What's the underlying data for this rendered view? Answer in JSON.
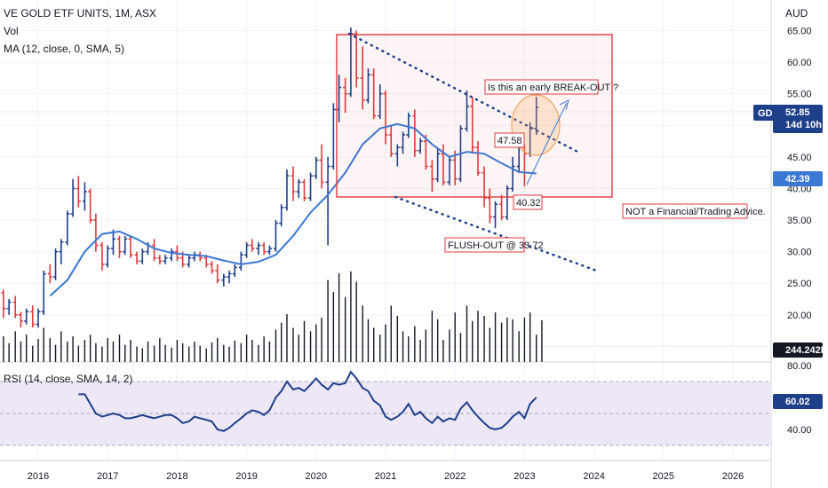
{
  "header": {
    "symbol_line": "VE GOLD ETF UNITS, 1M, ASX",
    "volume_label": "Vol",
    "ma_label": "MA (12, close, 0, SMA, 5)",
    "rsi_label": "RSI (14, close, SMA, 14, 2)",
    "currency": "AUD"
  },
  "chart_data": {
    "type": "candlestick",
    "timeframe": "1M",
    "x_tick_labels": [
      "2016",
      "2017",
      "2018",
      "2019",
      "2020",
      "2021",
      "2022",
      "2023",
      "2024",
      "2025",
      "2026"
    ],
    "price_axis": {
      "ylim": [
        14.5,
        69
      ],
      "ticks": [
        "15.00",
        "20.00",
        "25.00",
        "30.00",
        "35.00",
        "40.00",
        "45.00",
        "50.00",
        "55.00",
        "60.00",
        "65.00"
      ]
    },
    "rsi_axis": {
      "ylim": [
        25,
        80
      ],
      "ticks": [
        "40.00",
        "60.00",
        "80.00"
      ],
      "band": [
        30,
        70
      ]
    },
    "colors": {
      "up": "#1e3f8a",
      "down": "#e0393e",
      "ma": "#3a78d4",
      "rsi": "#1e3f8a",
      "annotation": "#e0393e",
      "trendline": "#1e3f8a",
      "rsi_band": "#ede7f6"
    },
    "badges": {
      "gdx": {
        "name": "GDX",
        "value": "52.85",
        "countdown": "14d 10h",
        "color": "#1e3f8a"
      },
      "ma": {
        "value": "42.39",
        "color": "#3a78d4"
      },
      "volume": {
        "value": "244.242K",
        "color": "#131722"
      },
      "rsi": {
        "value": "60.02",
        "color": "#1e3f8a"
      }
    },
    "annotations": {
      "breakout_question": "Is this an early BREAK-OUT ?",
      "disclaimer": "NOT a Financial/Trading Advice.",
      "flush_out": "FLUSH-OUT @ 33.72",
      "level_high": "47.58",
      "level_low": "40.32"
    },
    "candles": [
      [
        2015.5,
        23.5,
        24.0,
        19.5,
        21.0
      ],
      [
        2015.58,
        21.0,
        22.5,
        20.0,
        22.0
      ],
      [
        2015.67,
        22.0,
        23.0,
        19.5,
        20.0
      ],
      [
        2015.75,
        20.0,
        20.5,
        18.0,
        19.0
      ],
      [
        2015.83,
        19.0,
        21.0,
        18.5,
        20.5
      ],
      [
        2015.92,
        20.5,
        21.5,
        18.0,
        18.5
      ],
      [
        2016.0,
        18.5,
        21.0,
        18.0,
        20.5
      ],
      [
        2016.08,
        20.5,
        27.0,
        20.0,
        26.5
      ],
      [
        2016.17,
        26.5,
        28.0,
        25.0,
        26.0
      ],
      [
        2016.25,
        26.0,
        30.5,
        25.5,
        30.0
      ],
      [
        2016.33,
        30.0,
        32.0,
        28.0,
        31.5
      ],
      [
        2016.42,
        31.5,
        36.5,
        31.0,
        36.0
      ],
      [
        2016.5,
        36.0,
        41.5,
        35.5,
        40.0
      ],
      [
        2016.58,
        40.0,
        42.0,
        37.0,
        38.0
      ],
      [
        2016.67,
        38.0,
        41.0,
        36.5,
        39.5
      ],
      [
        2016.75,
        39.5,
        40.0,
        34.5,
        35.0
      ],
      [
        2016.83,
        35.0,
        36.0,
        30.0,
        31.0
      ],
      [
        2016.92,
        31.0,
        31.5,
        27.0,
        28.0
      ],
      [
        2017.0,
        28.0,
        31.0,
        27.5,
        30.5
      ],
      [
        2017.08,
        30.5,
        33.5,
        29.5,
        32.0
      ],
      [
        2017.17,
        32.0,
        32.5,
        29.0,
        30.0
      ],
      [
        2017.25,
        30.0,
        32.5,
        29.5,
        32.0
      ],
      [
        2017.33,
        32.0,
        32.5,
        29.0,
        29.5
      ],
      [
        2017.42,
        29.5,
        30.0,
        28.0,
        28.5
      ],
      [
        2017.5,
        28.5,
        30.5,
        28.0,
        30.0
      ],
      [
        2017.58,
        30.0,
        31.5,
        29.5,
        31.0
      ],
      [
        2017.67,
        31.0,
        32.0,
        28.5,
        29.0
      ],
      [
        2017.75,
        29.0,
        29.5,
        28.0,
        28.5
      ],
      [
        2017.83,
        28.5,
        29.5,
        28.0,
        29.0
      ],
      [
        2017.92,
        29.0,
        30.5,
        28.5,
        30.0
      ],
      [
        2018.0,
        30.0,
        31.0,
        28.5,
        29.0
      ],
      [
        2018.08,
        29.0,
        30.0,
        27.5,
        28.0
      ],
      [
        2018.17,
        28.0,
        29.5,
        27.5,
        29.0
      ],
      [
        2018.25,
        29.0,
        30.0,
        28.5,
        29.5
      ],
      [
        2018.33,
        29.5,
        30.0,
        28.5,
        29.0
      ],
      [
        2018.42,
        29.0,
        29.5,
        27.5,
        28.0
      ],
      [
        2018.5,
        28.0,
        28.5,
        26.5,
        27.0
      ],
      [
        2018.58,
        27.0,
        28.0,
        25.0,
        25.5
      ],
      [
        2018.67,
        25.5,
        26.5,
        24.5,
        26.0
      ],
      [
        2018.75,
        26.0,
        27.0,
        25.0,
        26.5
      ],
      [
        2018.83,
        26.5,
        28.0,
        26.0,
        27.5
      ],
      [
        2018.92,
        27.5,
        30.0,
        27.0,
        29.5
      ],
      [
        2019.0,
        29.5,
        31.5,
        29.0,
        31.0
      ],
      [
        2019.08,
        31.0,
        32.0,
        30.0,
        30.5
      ],
      [
        2019.17,
        30.5,
        31.5,
        29.5,
        31.0
      ],
      [
        2019.25,
        31.0,
        31.5,
        29.5,
        30.0
      ],
      [
        2019.33,
        30.0,
        31.0,
        29.5,
        30.5
      ],
      [
        2019.42,
        30.5,
        35.0,
        30.0,
        34.5
      ],
      [
        2019.5,
        34.5,
        37.5,
        34.0,
        37.0
      ],
      [
        2019.58,
        37.0,
        43.0,
        36.5,
        42.0
      ],
      [
        2019.67,
        42.0,
        43.5,
        38.0,
        39.5
      ],
      [
        2019.75,
        39.5,
        41.5,
        38.5,
        41.0
      ],
      [
        2019.83,
        41.0,
        41.5,
        38.0,
        38.5
      ],
      [
        2019.92,
        38.5,
        42.5,
        38.0,
        42.0
      ],
      [
        2020.0,
        42.0,
        45.0,
        41.5,
        44.5
      ],
      [
        2020.08,
        44.5,
        47.0,
        40.0,
        41.0
      ],
      [
        2020.17,
        41.0,
        45.0,
        31.0,
        43.5
      ],
      [
        2020.25,
        43.5,
        53.5,
        43.0,
        52.5
      ],
      [
        2020.33,
        52.5,
        58.0,
        50.5,
        56.0
      ],
      [
        2020.42,
        56.0,
        57.5,
        52.0,
        55.0
      ],
      [
        2020.5,
        55.0,
        65.5,
        54.5,
        64.5
      ],
      [
        2020.58,
        64.5,
        65.0,
        56.0,
        57.5
      ],
      [
        2020.67,
        57.5,
        62.5,
        52.5,
        54.0
      ],
      [
        2020.75,
        54.0,
        59.0,
        53.5,
        58.0
      ],
      [
        2020.83,
        58.0,
        59.0,
        51.0,
        51.5
      ],
      [
        2020.92,
        51.5,
        56.5,
        51.0,
        55.0
      ],
      [
        2021.0,
        55.0,
        55.5,
        47.0,
        48.5
      ],
      [
        2021.08,
        48.5,
        50.0,
        45.0,
        45.5
      ],
      [
        2021.17,
        45.5,
        47.0,
        43.5,
        46.5
      ],
      [
        2021.25,
        46.5,
        49.0,
        45.5,
        48.5
      ],
      [
        2021.33,
        48.5,
        52.0,
        48.0,
        51.5
      ],
      [
        2021.42,
        51.5,
        52.5,
        45.0,
        46.0
      ],
      [
        2021.5,
        46.0,
        48.0,
        45.5,
        47.5
      ],
      [
        2021.58,
        47.5,
        48.5,
        43.0,
        43.5
      ],
      [
        2021.67,
        43.5,
        44.5,
        39.5,
        41.5
      ],
      [
        2021.75,
        41.5,
        46.5,
        41.0,
        45.5
      ],
      [
        2021.83,
        45.5,
        47.0,
        40.5,
        41.0
      ],
      [
        2021.92,
        41.0,
        45.0,
        40.5,
        44.5
      ],
      [
        2022.0,
        44.5,
        46.0,
        40.5,
        41.5
      ],
      [
        2022.08,
        41.5,
        50.0,
        41.0,
        49.5
      ],
      [
        2022.17,
        49.5,
        55.5,
        49.0,
        53.0
      ],
      [
        2022.25,
        53.0,
        54.5,
        45.5,
        46.5
      ],
      [
        2022.33,
        46.5,
        47.5,
        42.0,
        42.5
      ],
      [
        2022.42,
        42.5,
        43.5,
        37.0,
        38.5
      ],
      [
        2022.5,
        38.5,
        40.0,
        34.5,
        35.5
      ],
      [
        2022.58,
        35.5,
        38.0,
        33.72,
        37.5
      ],
      [
        2022.67,
        37.5,
        39.0,
        35.0,
        35.5
      ],
      [
        2022.75,
        35.5,
        40.5,
        35.0,
        40.0
      ],
      [
        2022.83,
        40.0,
        45.0,
        39.5,
        43.5
      ],
      [
        2022.92,
        43.5,
        47.58,
        42.5,
        46.5
      ],
      [
        2023.0,
        46.5,
        47.0,
        40.32,
        45.5
      ],
      [
        2023.08,
        45.5,
        50.5,
        45.0,
        49.5
      ],
      [
        2023.17,
        49.5,
        54.5,
        48.5,
        52.85
      ]
    ],
    "ma_series": [
      [
        2016.17,
        23.0
      ],
      [
        2016.42,
        25.5
      ],
      [
        2016.67,
        30.0
      ],
      [
        2016.92,
        32.8
      ],
      [
        2017.17,
        33.2
      ],
      [
        2017.42,
        32.0
      ],
      [
        2017.67,
        30.5
      ],
      [
        2017.92,
        29.8
      ],
      [
        2018.17,
        29.5
      ],
      [
        2018.42,
        29.3
      ],
      [
        2018.67,
        28.6
      ],
      [
        2018.92,
        28.0
      ],
      [
        2019.17,
        28.4
      ],
      [
        2019.42,
        29.5
      ],
      [
        2019.67,
        32.5
      ],
      [
        2019.92,
        36.2
      ],
      [
        2020.17,
        39.0
      ],
      [
        2020.42,
        42.5
      ],
      [
        2020.67,
        47.0
      ],
      [
        2020.92,
        49.5
      ],
      [
        2021.17,
        50.2
      ],
      [
        2021.42,
        49.5
      ],
      [
        2021.67,
        47.0
      ],
      [
        2021.92,
        45.0
      ],
      [
        2022.17,
        45.8
      ],
      [
        2022.42,
        45.5
      ],
      [
        2022.67,
        44.0
      ],
      [
        2022.92,
        42.6
      ],
      [
        2023.17,
        42.39
      ]
    ],
    "volume": [
      [
        2015.5,
        150
      ],
      [
        2015.58,
        110
      ],
      [
        2015.67,
        180
      ],
      [
        2015.75,
        120
      ],
      [
        2015.83,
        160
      ],
      [
        2015.92,
        95
      ],
      [
        2016.0,
        135
      ],
      [
        2016.08,
        200
      ],
      [
        2016.17,
        140
      ],
      [
        2016.25,
        100
      ],
      [
        2016.33,
        180
      ],
      [
        2016.42,
        120
      ],
      [
        2016.5,
        150
      ],
      [
        2016.58,
        95
      ],
      [
        2016.67,
        130
      ],
      [
        2016.75,
        160
      ],
      [
        2016.83,
        110
      ],
      [
        2016.92,
        90
      ],
      [
        2017.0,
        140
      ],
      [
        2017.08,
        120
      ],
      [
        2017.17,
        160
      ],
      [
        2017.25,
        100
      ],
      [
        2017.33,
        130
      ],
      [
        2017.42,
        90
      ],
      [
        2017.5,
        80
      ],
      [
        2017.58,
        120
      ],
      [
        2017.67,
        95
      ],
      [
        2017.75,
        140
      ],
      [
        2017.83,
        100
      ],
      [
        2017.92,
        85
      ],
      [
        2018.0,
        130
      ],
      [
        2018.08,
        110
      ],
      [
        2018.17,
        90
      ],
      [
        2018.25,
        120
      ],
      [
        2018.33,
        95
      ],
      [
        2018.42,
        80
      ],
      [
        2018.5,
        115
      ],
      [
        2018.58,
        140
      ],
      [
        2018.67,
        100
      ],
      [
        2018.75,
        90
      ],
      [
        2018.83,
        125
      ],
      [
        2018.92,
        110
      ],
      [
        2019.0,
        160
      ],
      [
        2019.08,
        130
      ],
      [
        2019.17,
        100
      ],
      [
        2019.25,
        150
      ],
      [
        2019.33,
        120
      ],
      [
        2019.42,
        190
      ],
      [
        2019.5,
        230
      ],
      [
        2019.58,
        280
      ],
      [
        2019.67,
        200
      ],
      [
        2019.75,
        160
      ],
      [
        2019.83,
        240
      ],
      [
        2019.92,
        180
      ],
      [
        2020.0,
        220
      ],
      [
        2020.08,
        260
      ],
      [
        2020.17,
        480
      ],
      [
        2020.25,
        410
      ],
      [
        2020.33,
        520
      ],
      [
        2020.42,
        380
      ],
      [
        2020.5,
        530
      ],
      [
        2020.58,
        470
      ],
      [
        2020.67,
        330
      ],
      [
        2020.75,
        250
      ],
      [
        2020.83,
        200
      ],
      [
        2020.92,
        160
      ],
      [
        2021.0,
        220
      ],
      [
        2021.08,
        330
      ],
      [
        2021.17,
        270
      ],
      [
        2021.25,
        180
      ],
      [
        2021.33,
        150
      ],
      [
        2021.42,
        210
      ],
      [
        2021.5,
        130
      ],
      [
        2021.58,
        190
      ],
      [
        2021.67,
        300
      ],
      [
        2021.75,
        250
      ],
      [
        2021.83,
        130
      ],
      [
        2021.92,
        190
      ],
      [
        2022.0,
        290
      ],
      [
        2022.08,
        170
      ],
      [
        2022.17,
        330
      ],
      [
        2022.25,
        240
      ],
      [
        2022.33,
        300
      ],
      [
        2022.42,
        270
      ],
      [
        2022.5,
        200
      ],
      [
        2022.58,
        290
      ],
      [
        2022.67,
        230
      ],
      [
        2022.75,
        260
      ],
      [
        2022.83,
        250
      ],
      [
        2022.92,
        180
      ],
      [
        2023.0,
        260
      ],
      [
        2023.08,
        290
      ],
      [
        2023.17,
        160
      ],
      [
        2023.25,
        244
      ]
    ],
    "rsi_series": [
      [
        2016.58,
        62
      ],
      [
        2016.67,
        62
      ],
      [
        2016.75,
        56
      ],
      [
        2016.83,
        50
      ],
      [
        2016.92,
        48
      ],
      [
        2017.0,
        49
      ],
      [
        2017.08,
        50
      ],
      [
        2017.17,
        49
      ],
      [
        2017.25,
        47
      ],
      [
        2017.33,
        47
      ],
      [
        2017.42,
        48
      ],
      [
        2017.5,
        49
      ],
      [
        2017.58,
        48
      ],
      [
        2017.67,
        47
      ],
      [
        2017.75,
        48
      ],
      [
        2017.83,
        49
      ],
      [
        2017.92,
        49
      ],
      [
        2018.0,
        47
      ],
      [
        2018.08,
        44
      ],
      [
        2018.17,
        45
      ],
      [
        2018.25,
        48
      ],
      [
        2018.33,
        47
      ],
      [
        2018.42,
        46
      ],
      [
        2018.5,
        45
      ],
      [
        2018.58,
        40
      ],
      [
        2018.67,
        39
      ],
      [
        2018.75,
        41
      ],
      [
        2018.83,
        44
      ],
      [
        2018.92,
        47
      ],
      [
        2019.0,
        50
      ],
      [
        2019.08,
        52
      ],
      [
        2019.17,
        51
      ],
      [
        2019.25,
        49
      ],
      [
        2019.33,
        52
      ],
      [
        2019.42,
        60
      ],
      [
        2019.5,
        64
      ],
      [
        2019.58,
        70
      ],
      [
        2019.67,
        65
      ],
      [
        2019.75,
        66
      ],
      [
        2019.83,
        64
      ],
      [
        2019.92,
        68
      ],
      [
        2020.0,
        72
      ],
      [
        2020.08,
        68
      ],
      [
        2020.17,
        65
      ],
      [
        2020.25,
        69
      ],
      [
        2020.33,
        68
      ],
      [
        2020.42,
        69
      ],
      [
        2020.5,
        76
      ],
      [
        2020.58,
        72
      ],
      [
        2020.67,
        66
      ],
      [
        2020.75,
        64
      ],
      [
        2020.83,
        58
      ],
      [
        2020.92,
        55
      ],
      [
        2021.0,
        48
      ],
      [
        2021.08,
        46
      ],
      [
        2021.17,
        48
      ],
      [
        2021.25,
        51
      ],
      [
        2021.33,
        56
      ],
      [
        2021.42,
        49
      ],
      [
        2021.5,
        51
      ],
      [
        2021.58,
        47
      ],
      [
        2021.67,
        44
      ],
      [
        2021.75,
        48
      ],
      [
        2021.83,
        45
      ],
      [
        2021.92,
        47
      ],
      [
        2022.0,
        46
      ],
      [
        2022.08,
        53
      ],
      [
        2022.17,
        57
      ],
      [
        2022.25,
        52
      ],
      [
        2022.33,
        48
      ],
      [
        2022.42,
        44
      ],
      [
        2022.5,
        41
      ],
      [
        2022.58,
        40
      ],
      [
        2022.67,
        41
      ],
      [
        2022.75,
        44
      ],
      [
        2022.83,
        48
      ],
      [
        2022.92,
        51
      ],
      [
        2023.0,
        47
      ],
      [
        2023.08,
        56
      ],
      [
        2023.17,
        60.02
      ]
    ]
  }
}
